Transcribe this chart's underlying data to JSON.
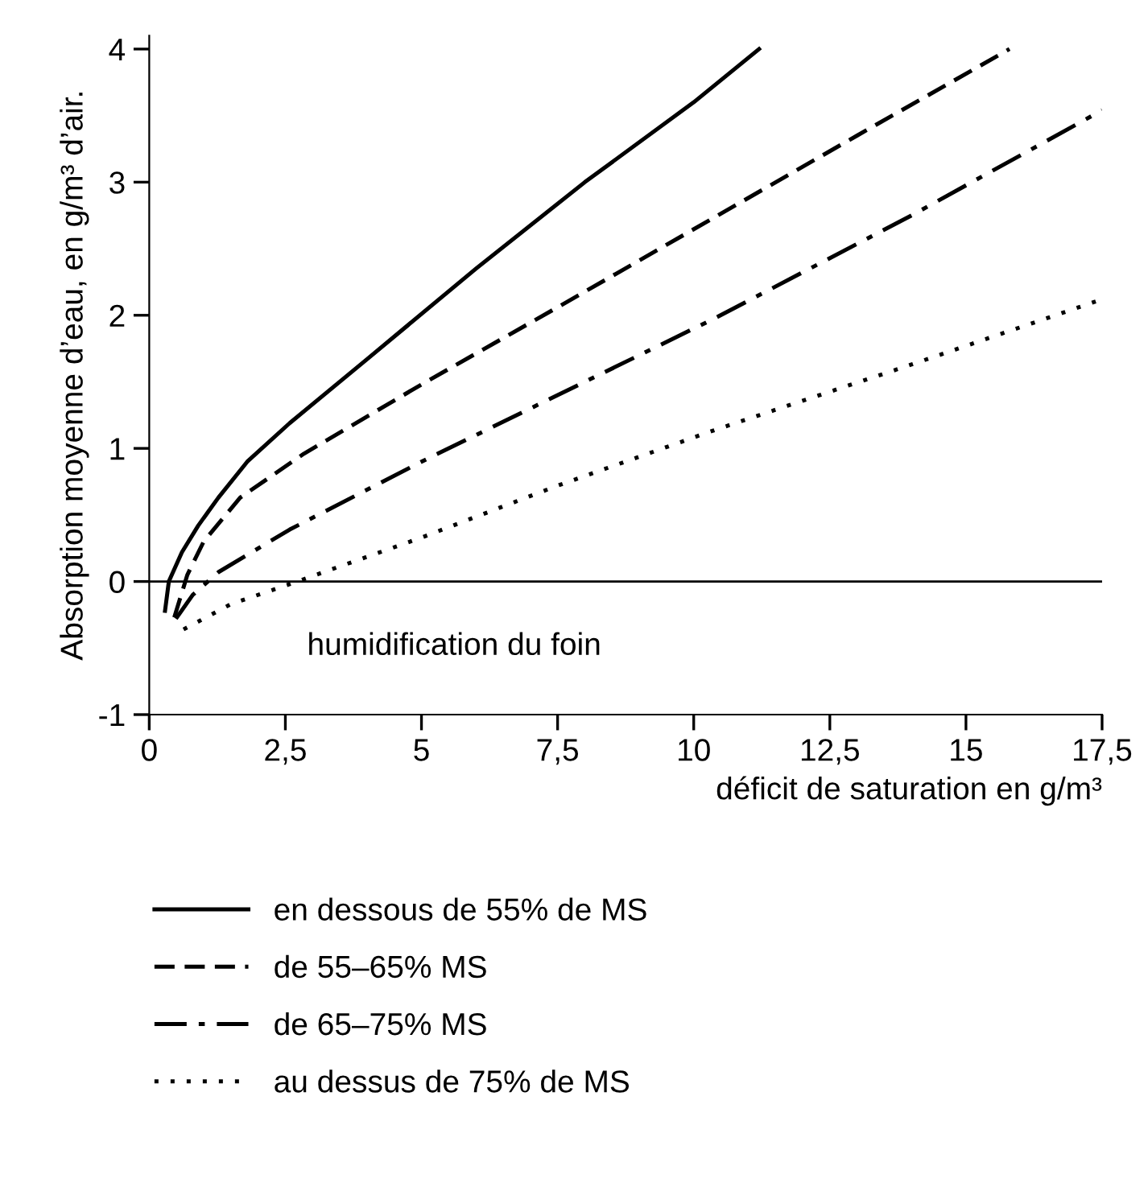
{
  "chart_data": {
    "type": "line",
    "xlabel": "déficit de saturation en g/m³",
    "ylabel": "Absorption moyenne d’eau, en g/m³ d’air.",
    "xlim": [
      0,
      17.5
    ],
    "ylim": [
      -1,
      4.1
    ],
    "xticks": [
      0,
      {
        "value": 2.5,
        "label": "2,5"
      },
      5,
      {
        "value": 7.5,
        "label": "7,5"
      },
      10,
      {
        "value": 12.5,
        "label": "12,5"
      },
      15,
      {
        "value": 17.5,
        "label": "17,5"
      }
    ],
    "yticks": [
      {
        "value": -1,
        "label": "-1"
      },
      0,
      1,
      2,
      3,
      4
    ],
    "ref_lines": [
      {
        "axis": "y",
        "value": 0,
        "color": "#000000",
        "line_style": "solid"
      }
    ],
    "annotations": [
      "humidification du foin"
    ],
    "legend": "bottom",
    "grid": false,
    "series": [
      {
        "name": "en dessous de 55% de MS",
        "color": "#000000",
        "line_style": "solid",
        "x": [
          0.29,
          0.36,
          0.6,
          0.9,
          1.27,
          1.8,
          2.58,
          4,
          6,
          8,
          10,
          11.2
        ],
        "values": [
          -0.22,
          0.0,
          0.22,
          0.42,
          0.63,
          0.9,
          1.19,
          1.67,
          2.35,
          3.0,
          3.6,
          4.0
        ]
      },
      {
        "name": "de 55–65% MS",
        "color": "#000000",
        "line_style": "dashed",
        "x": [
          0.46,
          0.7,
          1.0,
          1.67,
          2.84,
          5,
          7.5,
          10.4,
          13,
          15.8
        ],
        "values": [
          -0.27,
          0.05,
          0.3,
          0.63,
          0.96,
          1.48,
          2.06,
          2.74,
          3.35,
          4.0
        ]
      },
      {
        "name": "de 65–75% MS",
        "color": "#000000",
        "line_style": "dashdot",
        "x": [
          0.49,
          0.8,
          1.27,
          2.58,
          5,
          7.5,
          10.4,
          14,
          17.5
        ],
        "values": [
          -0.28,
          -0.1,
          0.07,
          0.39,
          0.9,
          1.4,
          1.98,
          2.75,
          3.54
        ]
      },
      {
        "name": "au dessus de 75% de MS",
        "color": "#000000",
        "line_style": "dotted",
        "x": [
          0.63,
          1.5,
          2.58,
          5,
          7.5,
          10.4,
          14,
          17.5
        ],
        "values": [
          -0.36,
          -0.17,
          -0.02,
          0.33,
          0.72,
          1.14,
          1.63,
          2.12
        ]
      }
    ]
  }
}
